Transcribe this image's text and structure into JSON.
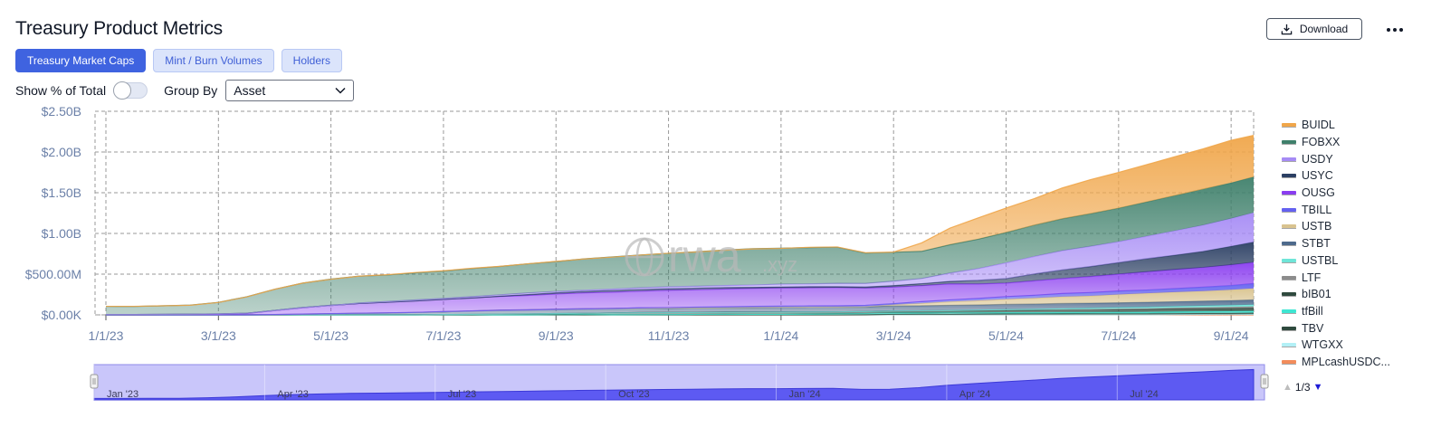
{
  "header": {
    "title": "Treasury Product Metrics",
    "download_label": "Download"
  },
  "tabs": [
    {
      "label": "Treasury Market Caps",
      "active": true
    },
    {
      "label": "Mint / Burn Volumes",
      "active": false
    },
    {
      "label": "Holders",
      "active": false
    }
  ],
  "controls": {
    "percent_toggle_label": "Show % of Total",
    "percent_toggle_on": false,
    "group_by_label": "Group By",
    "group_by_value": "Asset"
  },
  "watermark": {
    "main": "rwa",
    "suffix": ".xyz"
  },
  "legend_pager": {
    "text": "1/3"
  },
  "chart_data": {
    "type": "area",
    "stacked": true,
    "x_unit": "month-index since 1/1/23",
    "x": [
      0,
      0.5,
      1,
      1.5,
      2,
      2.5,
      3,
      3.5,
      4,
      4.5,
      5,
      5.5,
      6,
      6.5,
      7,
      7.5,
      8,
      8.5,
      9,
      9.5,
      10,
      10.5,
      11,
      11.5,
      12,
      12.5,
      13,
      13.5,
      14,
      14.5,
      15,
      15.5,
      16,
      16.5,
      17,
      17.5,
      18,
      18.5,
      19,
      19.5,
      20,
      20.4
    ],
    "y_ticks": [
      "$0.00K",
      "$500.00M",
      "$1.00B",
      "$1.50B",
      "$2.00B",
      "$2.50B"
    ],
    "y_tick_values": [
      0,
      0.5,
      1.0,
      1.5,
      2.0,
      2.5
    ],
    "ylim": [
      0,
      2.5
    ],
    "x_ticks": [
      "1/1/23",
      "3/1/23",
      "5/1/23",
      "7/1/23",
      "9/1/23",
      "11/1/23",
      "1/1/24",
      "3/1/24",
      "5/1/24",
      "7/1/24",
      "9/1/24"
    ],
    "x_tick_values": [
      0,
      2,
      4,
      6,
      8,
      10,
      12,
      14,
      16,
      18,
      20
    ],
    "series": [
      {
        "name": "MPLcashUSDC...",
        "color": "#f28c5b",
        "values": [
          0,
          0,
          0,
          0,
          0,
          0,
          0,
          0,
          0,
          0,
          0,
          0,
          0,
          0,
          0,
          0,
          0,
          0,
          0,
          0,
          0,
          0,
          0,
          0,
          0,
          0,
          0,
          0,
          0,
          0,
          0,
          0,
          0,
          0,
          0,
          0,
          0,
          0,
          0,
          0,
          0,
          0
        ]
      },
      {
        "name": "WTGXX",
        "color": "#b3f0f6",
        "values": [
          0,
          0,
          0,
          0,
          0,
          0,
          0,
          0,
          0,
          0,
          0,
          0,
          0,
          0,
          0,
          0,
          0,
          0,
          0,
          0,
          0,
          0,
          0,
          0,
          0,
          0,
          0,
          0,
          0,
          0,
          0,
          0,
          0,
          0,
          0,
          0,
          0,
          0,
          0.003,
          0.005,
          0.006,
          0.007
        ]
      },
      {
        "name": "TBV",
        "color": "#2f4a3e",
        "values": [
          0,
          0,
          0,
          0,
          0,
          0,
          0,
          0,
          0,
          0,
          0,
          0,
          0,
          0,
          0,
          0,
          0,
          0,
          0,
          0,
          0,
          0,
          0,
          0,
          0,
          0,
          0,
          0.005,
          0.01,
          0.012,
          0.013,
          0.014,
          0.015,
          0.015,
          0.016,
          0.016,
          0.017,
          0.017,
          0.018,
          0.018,
          0.018,
          0.018
        ]
      },
      {
        "name": "tfBill",
        "color": "#3ee6d2",
        "values": [
          0,
          0,
          0,
          0,
          0,
          0,
          0,
          0,
          0,
          0,
          0,
          0,
          0,
          0,
          0,
          0,
          0.002,
          0.003,
          0.005,
          0.006,
          0.007,
          0.008,
          0.009,
          0.01,
          0.011,
          0.011,
          0.012,
          0.012,
          0.013,
          0.013,
          0.014,
          0.014,
          0.015,
          0.015,
          0.016,
          0.016,
          0.017,
          0.018,
          0.019,
          0.02,
          0.021,
          0.022
        ]
      },
      {
        "name": "bIB01",
        "color": "#2f4a3e",
        "values": [
          0,
          0,
          0,
          0,
          0,
          0,
          0,
          0,
          0,
          0,
          0,
          0,
          0.005,
          0.007,
          0.01,
          0.012,
          0.015,
          0.017,
          0.018,
          0.02,
          0.021,
          0.022,
          0.023,
          0.024,
          0.024,
          0.025,
          0.025,
          0.025,
          0.026,
          0.026,
          0.026,
          0.027,
          0.028,
          0.028,
          0.029,
          0.03,
          0.031,
          0.032,
          0.033,
          0.034,
          0.035,
          0.036
        ]
      },
      {
        "name": "LTF",
        "color": "#8c8c8c",
        "values": [
          0,
          0,
          0,
          0,
          0,
          0,
          0,
          0,
          0,
          0,
          0,
          0,
          0,
          0,
          0,
          0,
          0,
          0,
          0,
          0,
          0,
          0,
          0,
          0,
          0,
          0,
          0,
          0,
          0,
          0,
          0,
          0,
          0.002,
          0.004,
          0.006,
          0.008,
          0.01,
          0.012,
          0.014,
          0.016,
          0.018,
          0.02
        ]
      },
      {
        "name": "USTBL",
        "color": "#6fe5d8",
        "values": [
          0,
          0,
          0,
          0,
          0,
          0,
          0,
          0,
          0,
          0,
          0,
          0,
          0,
          0,
          0,
          0,
          0,
          0,
          0,
          0,
          0,
          0,
          0,
          0,
          0,
          0,
          0,
          0,
          0,
          0,
          0.004,
          0.006,
          0.008,
          0.01,
          0.012,
          0.014,
          0.015,
          0.016,
          0.017,
          0.018,
          0.02,
          0.022
        ]
      },
      {
        "name": "STBT",
        "color": "#4e6a8c",
        "values": [
          0,
          0,
          0,
          0,
          0,
          0,
          0.004,
          0.01,
          0.015,
          0.02,
          0.025,
          0.03,
          0.035,
          0.04,
          0.045,
          0.048,
          0.05,
          0.052,
          0.054,
          0.055,
          0.056,
          0.057,
          0.058,
          0.059,
          0.06,
          0.06,
          0.06,
          0.06,
          0.06,
          0.06,
          0.06,
          0.06,
          0.06,
          0.06,
          0.06,
          0.06,
          0.06,
          0.06,
          0.06,
          0.06,
          0.06,
          0.06
        ]
      },
      {
        "name": "USTB",
        "color": "#d9c38f",
        "values": [
          0,
          0,
          0,
          0,
          0,
          0,
          0,
          0,
          0,
          0,
          0,
          0,
          0,
          0,
          0,
          0,
          0,
          0,
          0,
          0,
          0,
          0,
          0,
          0,
          0,
          0,
          0,
          0,
          0.015,
          0.03,
          0.045,
          0.055,
          0.065,
          0.075,
          0.085,
          0.09,
          0.1,
          0.11,
          0.115,
          0.12,
          0.13,
          0.14
        ]
      },
      {
        "name": "TBILL",
        "color": "#6461f0",
        "values": [
          0,
          0,
          0,
          0,
          0,
          0,
          0,
          0,
          0,
          0,
          0,
          0,
          0,
          0,
          0,
          0,
          0,
          0,
          0,
          0.002,
          0.005,
          0.008,
          0.01,
          0.012,
          0.014,
          0.015,
          0.016,
          0.016,
          0.017,
          0.018,
          0.02,
          0.024,
          0.028,
          0.032,
          0.035,
          0.038,
          0.04,
          0.042,
          0.045,
          0.05,
          0.055,
          0.06
        ]
      },
      {
        "name": "OUSG",
        "color": "#8a3df0",
        "values": [
          0.005,
          0.005,
          0.006,
          0.008,
          0.012,
          0.02,
          0.05,
          0.08,
          0.1,
          0.12,
          0.13,
          0.14,
          0.15,
          0.16,
          0.17,
          0.18,
          0.19,
          0.2,
          0.205,
          0.21,
          0.215,
          0.215,
          0.22,
          0.22,
          0.22,
          0.22,
          0.22,
          0.21,
          0.2,
          0.2,
          0.2,
          0.18,
          0.17,
          0.18,
          0.19,
          0.2,
          0.21,
          0.22,
          0.23,
          0.24,
          0.25,
          0.26
        ]
      },
      {
        "name": "USYC",
        "color": "#2b3f63",
        "values": [
          0,
          0,
          0,
          0,
          0,
          0,
          0,
          0,
          0,
          0,
          0,
          0,
          0,
          0,
          0.005,
          0.01,
          0.012,
          0.014,
          0.015,
          0.016,
          0.016,
          0.015,
          0.015,
          0.015,
          0.015,
          0.015,
          0.015,
          0.015,
          0.02,
          0.025,
          0.03,
          0.04,
          0.05,
          0.08,
          0.1,
          0.12,
          0.14,
          0.16,
          0.18,
          0.2,
          0.23,
          0.25
        ]
      },
      {
        "name": "USDY",
        "color": "#a68bf5",
        "values": [
          0,
          0,
          0,
          0,
          0,
          0,
          0,
          0,
          0.002,
          0.005,
          0.008,
          0.01,
          0.012,
          0.015,
          0.016,
          0.017,
          0.018,
          0.02,
          0.022,
          0.025,
          0.026,
          0.027,
          0.028,
          0.03,
          0.032,
          0.034,
          0.036,
          0.04,
          0.05,
          0.06,
          0.1,
          0.15,
          0.2,
          0.22,
          0.24,
          0.25,
          0.26,
          0.28,
          0.3,
          0.32,
          0.34,
          0.36
        ]
      },
      {
        "name": "FOBXX",
        "color": "#3f806b",
        "values": [
          0.1,
          0.1,
          0.105,
          0.11,
          0.14,
          0.2,
          0.26,
          0.3,
          0.32,
          0.33,
          0.33,
          0.34,
          0.34,
          0.35,
          0.35,
          0.36,
          0.37,
          0.38,
          0.39,
          0.4,
          0.41,
          0.42,
          0.43,
          0.44,
          0.44,
          0.45,
          0.45,
          0.38,
          0.36,
          0.34,
          0.35,
          0.36,
          0.37,
          0.38,
          0.39,
          0.4,
          0.41,
          0.42,
          0.43,
          0.44,
          0.44,
          0.44
        ]
      },
      {
        "name": "BUIDL",
        "color": "#f0a64a",
        "values": [
          0,
          0,
          0,
          0,
          0,
          0,
          0,
          0,
          0,
          0,
          0,
          0,
          0,
          0,
          0,
          0,
          0,
          0,
          0,
          0,
          0,
          0,
          0,
          0,
          0,
          0,
          0,
          0,
          0,
          0.1,
          0.2,
          0.26,
          0.3,
          0.33,
          0.38,
          0.42,
          0.44,
          0.46,
          0.48,
          0.5,
          0.52,
          0.51
        ]
      }
    ]
  },
  "navigator": {
    "x_ticks": [
      "Jan '23",
      "Apr '23",
      "Jul '23",
      "Oct '23",
      "Jan '24",
      "Apr '24",
      "Jul '24"
    ],
    "x_tick_values": [
      0,
      3,
      6,
      9,
      12,
      15,
      18
    ]
  }
}
